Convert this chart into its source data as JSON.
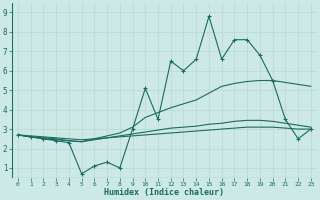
{
  "xlabel": "Humidex (Indice chaleur)",
  "xlim": [
    -0.5,
    23.5
  ],
  "ylim": [
    0.5,
    9.5
  ],
  "xticks": [
    0,
    1,
    2,
    3,
    4,
    5,
    6,
    7,
    8,
    9,
    10,
    11,
    12,
    13,
    14,
    15,
    16,
    17,
    18,
    19,
    20,
    21,
    22,
    23
  ],
  "yticks": [
    1,
    2,
    3,
    4,
    5,
    6,
    7,
    8,
    9
  ],
  "bg_color": "#cce9e5",
  "grid_color": "#b8d8d4",
  "line_color": "#1a6b60",
  "series": {
    "main": [
      2.7,
      2.6,
      2.5,
      2.4,
      2.3,
      0.7,
      1.1,
      1.3,
      1.0,
      3.0,
      5.1,
      3.5,
      6.5,
      6.0,
      6.6,
      8.8,
      6.6,
      7.6,
      7.6,
      6.8,
      5.5,
      3.5,
      2.5,
      3.0
    ],
    "upper": [
      2.7,
      2.6,
      2.55,
      2.5,
      2.4,
      2.35,
      2.5,
      2.65,
      2.8,
      3.1,
      3.6,
      3.85,
      4.1,
      4.3,
      4.5,
      4.85,
      5.2,
      5.35,
      5.45,
      5.5,
      5.5,
      5.4,
      5.3,
      5.2
    ],
    "lower": [
      2.7,
      2.6,
      2.5,
      2.45,
      2.4,
      2.35,
      2.45,
      2.55,
      2.65,
      2.75,
      2.85,
      2.95,
      3.05,
      3.1,
      3.15,
      3.25,
      3.3,
      3.4,
      3.45,
      3.45,
      3.4,
      3.3,
      3.2,
      3.1
    ],
    "flat": [
      2.7,
      2.65,
      2.6,
      2.55,
      2.5,
      2.45,
      2.5,
      2.55,
      2.6,
      2.65,
      2.7,
      2.75,
      2.8,
      2.85,
      2.9,
      2.95,
      3.0,
      3.05,
      3.1,
      3.1,
      3.1,
      3.05,
      3.0,
      3.0
    ]
  }
}
